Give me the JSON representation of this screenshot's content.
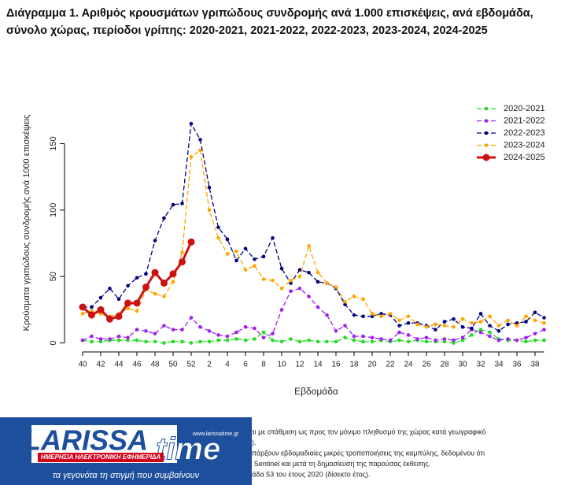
{
  "chart_data": {
    "type": "line",
    "title": "Διάγραμμα 1. Αριθμός κρουσμάτων γριπώδους συνδρομής ανά 1.000 επισκέψεις, ανά εβδομάδα, σύνολο χώρας, περίοδοι γρίπης: 2020-2021, 2021-2022, 2022-2023, 2023-2024, 2024-2025",
    "x_label": "Εβδομάδα",
    "y_label": "Κρούσματα γριπώδους συνδρομής ανά 1000 επισκέψεις",
    "categories": [
      "40",
      null,
      "42",
      null,
      "44",
      null,
      "46",
      null,
      "48",
      null,
      "50",
      null,
      "52",
      null,
      "2",
      null,
      "4",
      null,
      "6",
      null,
      "8",
      null,
      "10",
      null,
      "12",
      null,
      "14",
      null,
      "16",
      null,
      "18",
      null,
      "20",
      null,
      "22",
      null,
      "24",
      null,
      "26",
      null,
      "28",
      null,
      "30",
      null,
      "32",
      null,
      "34",
      null,
      "36",
      null,
      "38",
      null
    ],
    "ylim": [
      -5,
      187
    ],
    "yticks": [
      0,
      50,
      100,
      150
    ],
    "legend": "top-right",
    "series": [
      {
        "name": "2020-2021",
        "color": "#22dd22",
        "dashed": true,
        "values": [
          2,
          1,
          1,
          2,
          2,
          2,
          2,
          1,
          1,
          0,
          1,
          1,
          0,
          1,
          1,
          2,
          2,
          3,
          2,
          3,
          8,
          2,
          1,
          3,
          1,
          2,
          1,
          1,
          1,
          4,
          2,
          1,
          1,
          2,
          1,
          2,
          1,
          2,
          1,
          1,
          1,
          0,
          2,
          6,
          10,
          8,
          3,
          2,
          2,
          1,
          2,
          2
        ]
      },
      {
        "name": "2021-2022",
        "color": "#a020f0",
        "dashed": true,
        "values": [
          2,
          5,
          3,
          3,
          5,
          4,
          10,
          9,
          7,
          13,
          10,
          10,
          19,
          12,
          9,
          6,
          5,
          8,
          12,
          11,
          4,
          7,
          25,
          39,
          41,
          35,
          27,
          21,
          9,
          13,
          5,
          5,
          4,
          3,
          2,
          8,
          6,
          3,
          4,
          2,
          3,
          2,
          4,
          10,
          8,
          5,
          2,
          3,
          2,
          4,
          7,
          10
        ]
      },
      {
        "name": "2022-2023",
        "color": "#000080",
        "dashed": true,
        "values": [
          27,
          27,
          34,
          41,
          33,
          43,
          49,
          52,
          77,
          94,
          104,
          105,
          165,
          153,
          117,
          87,
          78,
          62,
          71,
          63,
          65,
          79,
          56,
          45,
          55,
          53,
          46,
          45,
          41,
          29,
          21,
          20,
          20,
          22,
          21,
          13,
          15,
          15,
          13,
          10,
          16,
          18,
          12,
          11,
          22,
          13,
          9,
          14,
          15,
          16,
          23,
          19
        ]
      },
      {
        "name": "2023-2024",
        "color": "#ffa500",
        "dashed": true,
        "values": [
          22,
          24,
          22,
          20,
          22,
          26,
          24,
          40,
          37,
          35,
          46,
          68,
          140,
          145,
          100,
          79,
          67,
          69,
          55,
          58,
          48,
          47,
          41,
          47,
          50,
          73,
          53,
          45,
          42,
          31,
          35,
          33,
          22,
          20,
          22,
          17,
          20,
          14,
          12,
          14,
          13,
          12,
          18,
          15,
          16,
          20,
          13,
          17,
          13,
          20,
          17,
          15
        ]
      },
      {
        "name": "2024-2025",
        "color": "#cc1111",
        "dashed": false,
        "values": [
          27,
          21,
          25,
          18,
          20,
          30,
          30,
          42,
          53,
          45,
          52,
          61,
          76,
          null,
          null,
          null,
          null,
          null,
          null,
          null,
          null,
          null,
          null,
          null,
          null,
          null,
          null,
          null,
          null,
          null,
          null,
          null,
          null,
          null,
          null,
          null,
          null,
          null,
          null,
          null,
          null,
          null,
          null,
          null,
          null,
          null,
          null,
          null,
          null,
          null,
          null,
          null
        ]
      }
    ]
  },
  "footnotes": [
    "ται με στάθμιση ως προς τον μόνιμο πληθυσμό της χώρας κατά γεωγραφικό",
    "1).",
    "υπάρξουν εβδομαδιαίες μικρές τροποποιήσεις της καμπύλης, δεδομένου ότι",
    "α Sentinel και μετά τη δημοσίευση της παρούσας έκθεσης.",
    "μάδα 53 του έτους 2020 (δίσεκτο έτος)."
  ],
  "logo": {
    "name_a": "LARISSA",
    "name_b": "time",
    "url": "www.larissatime.gr",
    "tag": "ΗΜΕΡΗΣΙΑ ΗΛΕΚΤΡΟΝΙΚΗ ΕΦΗΜΕΡΙΔΑ",
    "slogan": "τα γεγονότα τη στιγμή που συμβαίνουν"
  }
}
